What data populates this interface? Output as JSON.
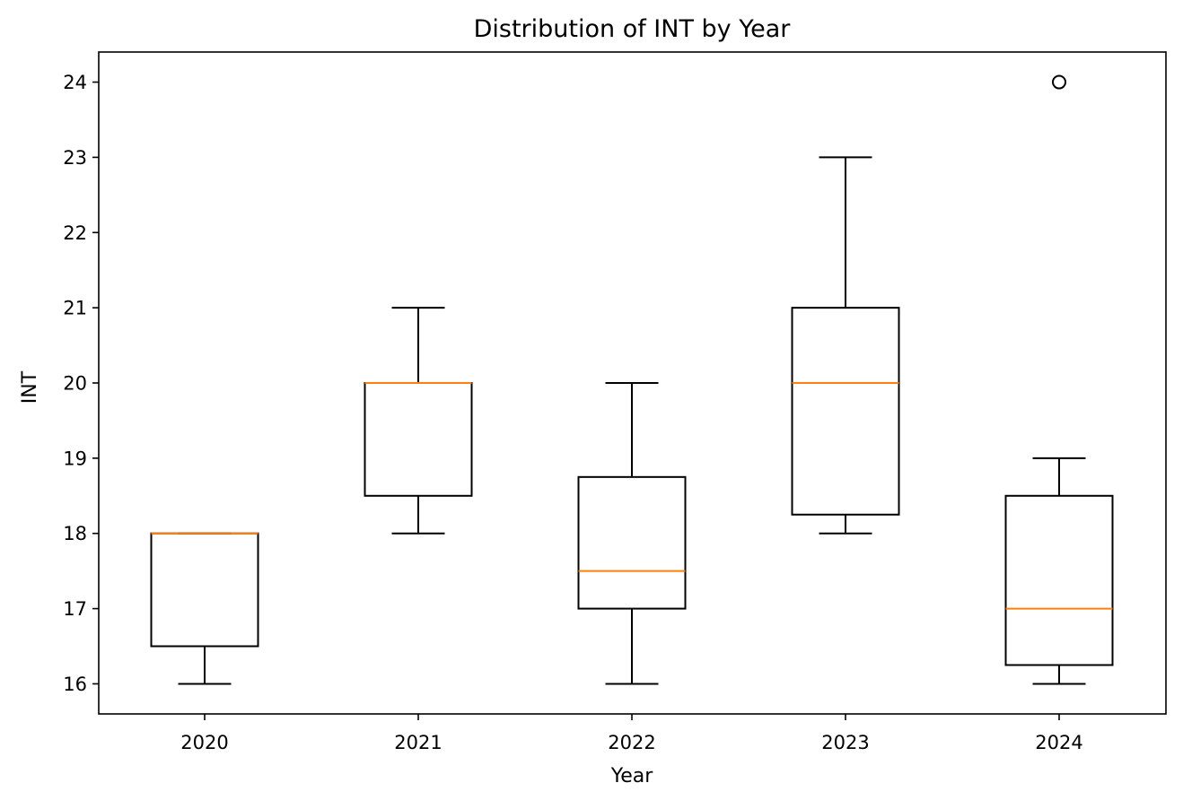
{
  "chart_data": {
    "type": "boxplot",
    "title": "Distribution of INT by Year",
    "xlabel": "Year",
    "ylabel": "INT",
    "categories": [
      "2020",
      "2021",
      "2022",
      "2023",
      "2024"
    ],
    "boxes": [
      {
        "category": "2020",
        "whisker_low": 16,
        "q1": 16.5,
        "median": 18,
        "q3": 18,
        "whisker_high": 18,
        "outliers": []
      },
      {
        "category": "2021",
        "whisker_low": 18,
        "q1": 18.5,
        "median": 20,
        "q3": 20,
        "whisker_high": 21,
        "outliers": []
      },
      {
        "category": "2022",
        "whisker_low": 16,
        "q1": 17,
        "median": 17.5,
        "q3": 18.75,
        "whisker_high": 20,
        "outliers": []
      },
      {
        "category": "2023",
        "whisker_low": 18,
        "q1": 18.25,
        "median": 20,
        "q3": 21,
        "whisker_high": 23,
        "outliers": []
      },
      {
        "category": "2024",
        "whisker_low": 16,
        "q1": 16.25,
        "median": 17,
        "q3": 18.5,
        "whisker_high": 19,
        "outliers": [
          24
        ]
      }
    ],
    "yticks": [
      16,
      17,
      18,
      19,
      20,
      21,
      22,
      23,
      24
    ],
    "ylim": [
      15.6,
      24.4
    ],
    "grid": false,
    "legend": "none",
    "colors": {
      "box": "#000000",
      "median": "#ff7f0e",
      "whisker": "#000000",
      "outlier": "#000000"
    }
  }
}
